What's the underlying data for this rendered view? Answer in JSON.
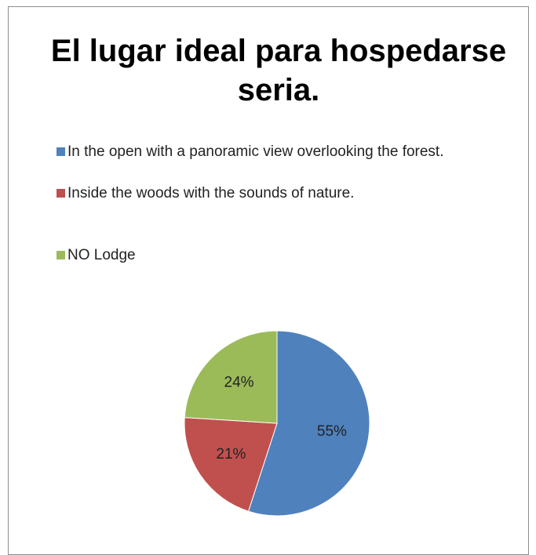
{
  "chart_data": {
    "type": "pie",
    "title": "El lugar ideal para hospedarse seria.",
    "categories": [
      "In the open with a panoramic view overlooking the forest.",
      "Inside the woods with the sounds of nature.",
      "NO Lodge"
    ],
    "values": [
      55,
      21,
      24
    ],
    "value_labels": [
      "55%",
      "21%",
      "24%"
    ],
    "colors": [
      "#4f81bd",
      "#c0504d",
      "#9bbb59"
    ],
    "legend": "top"
  }
}
